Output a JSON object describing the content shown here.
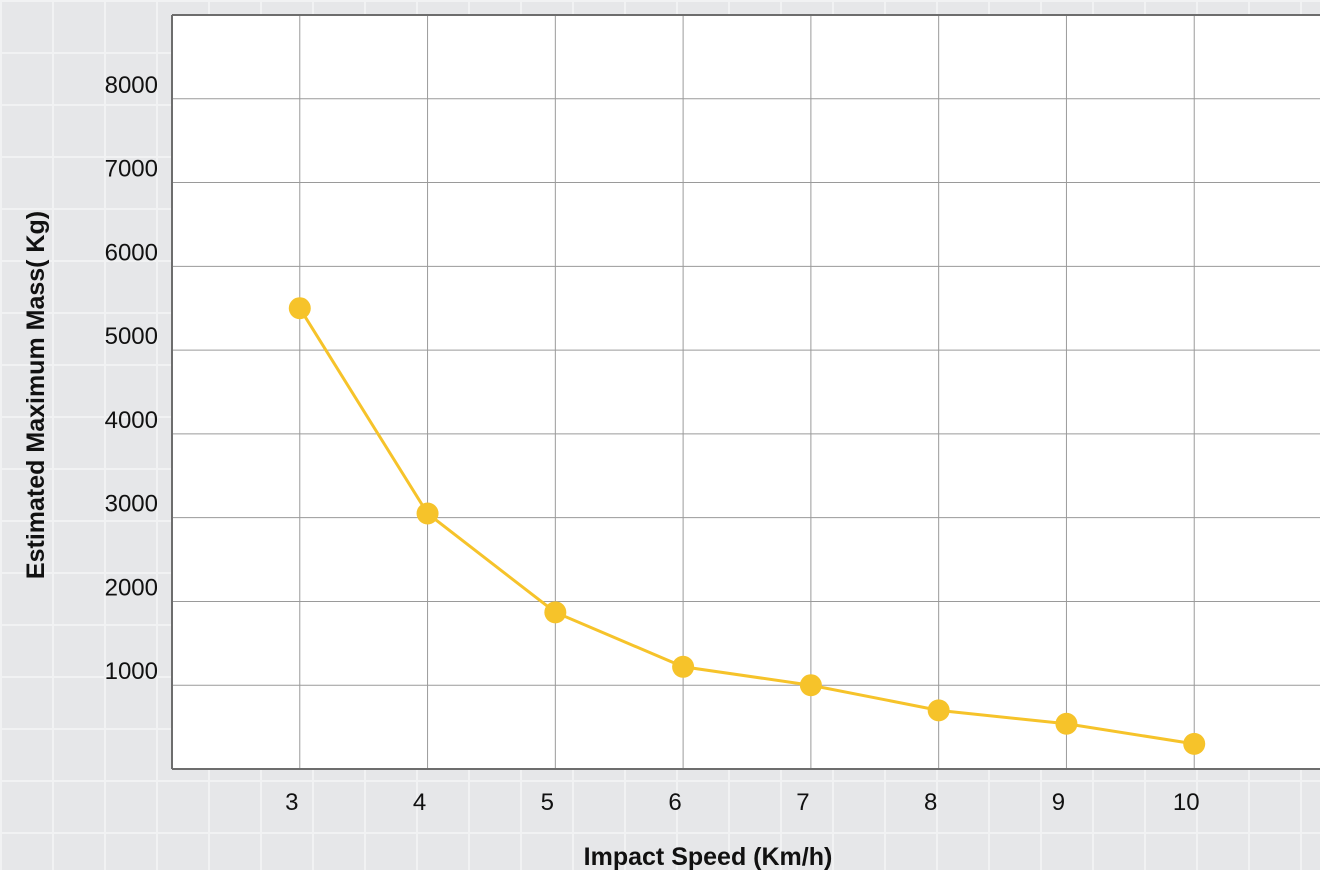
{
  "chart_data": {
    "type": "line",
    "title": "",
    "xlabel": "Impact Speed (Km/h)",
    "ylabel": "Estimated Maximum Mass( Kg)",
    "x": [
      3,
      4,
      5,
      6,
      7,
      8,
      9,
      10
    ],
    "x_tick_labels": [
      "3",
      "4",
      "5",
      "6",
      "7",
      "8",
      "9",
      "10"
    ],
    "y_tick_labels": [
      "1000",
      "2000",
      "3000",
      "4000",
      "5000",
      "6000",
      "7000",
      "8000"
    ],
    "y_ticks": [
      1000,
      2000,
      3000,
      4000,
      5000,
      6000,
      7000,
      8000
    ],
    "xlim": [
      2,
      11
    ],
    "ylim": [
      0,
      9000
    ],
    "grid": true,
    "series": [
      {
        "values": [
          5500,
          3050,
          1870,
          1220,
          1000,
          700,
          540,
          300
        ]
      }
    ],
    "colors": {
      "line": "#f6c32a",
      "grid": "#9a9a9a",
      "plot_bg": "#ffffff",
      "axis": "#6d6d6d"
    }
  }
}
